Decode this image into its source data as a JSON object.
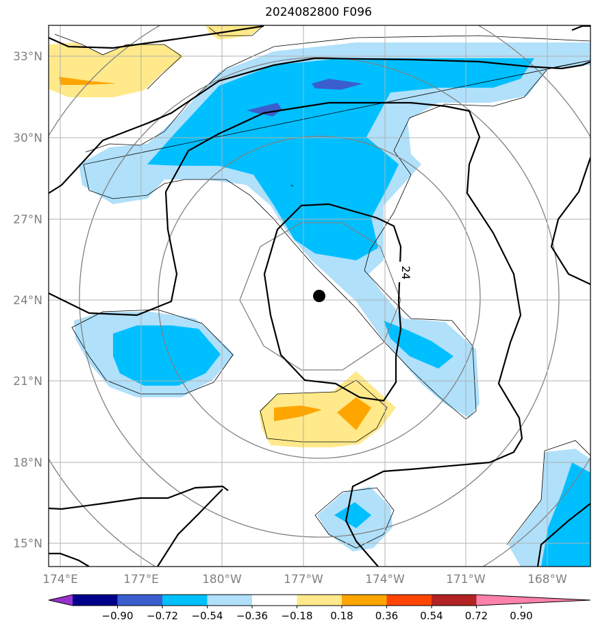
{
  "title": "2024082800 F096",
  "contour_label": "24",
  "lat_labels": [
    "33°N",
    "30°N",
    "27°N",
    "24°N",
    "21°N",
    "18°N",
    "15°N"
  ],
  "lon_labels": [
    "174°E",
    "177°E",
    "180°W",
    "177°W",
    "174°W",
    "171°W",
    "168°W"
  ],
  "colorbar": {
    "ticks": [
      "−0.90",
      "−0.72",
      "−0.54",
      "−0.36",
      "−0.18",
      "0.18",
      "0.36",
      "0.54",
      "0.72",
      "0.90"
    ],
    "colors": [
      "#9932cc",
      "#00008b",
      "#3a5fcd",
      "#00bfff",
      "#b0e0fa",
      "#ffffff",
      "#ffe98a",
      "#ffa500",
      "#ff4500",
      "#b22222",
      "#ff82ab"
    ]
  },
  "storm_center": {
    "lat": 24.2,
    "lon": -175.8
  },
  "colors": {
    "light_blue": "#b0e0fa",
    "blue": "#00bfff",
    "dark_blue": "#3a5fcd",
    "yellow": "#ffe98a",
    "orange": "#ffa500"
  }
}
